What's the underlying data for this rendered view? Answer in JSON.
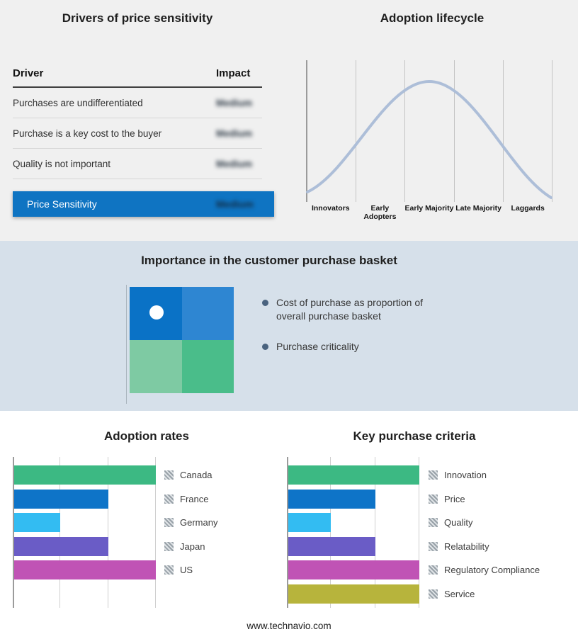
{
  "meta": {
    "footer": "www.technavio.com"
  },
  "drivers_panel": {
    "title": "Drivers of price sensitivity",
    "header": {
      "driver": "Driver",
      "impact": "Impact"
    },
    "rows": [
      {
        "driver": "Purchases are undifferentiated",
        "impact": "Medium"
      },
      {
        "driver": "Purchase is a key cost to the buyer",
        "impact": "Medium"
      },
      {
        "driver": "Quality is not important",
        "impact": "Medium"
      }
    ],
    "summary_row": {
      "label": "Price Sensitivity",
      "impact": "Medium"
    },
    "summary_color": "#0f74c2",
    "impact_values_redacted": true
  },
  "basket_panel": {
    "title": "Importance in the customer purchase basket",
    "bullets": [
      "Cost of purchase as proportion of overall purchase basket",
      "Purchase criticality"
    ],
    "quadrants": {
      "top_left": "#0a72c6",
      "top_right": "#2e86d2",
      "bottom_left": "#7ecaa3",
      "bottom_right": "#4abd8a"
    }
  },
  "chart_data": [
    {
      "type": "line",
      "title": "Adoption lifecycle",
      "shape": "bell-curve",
      "x_labels": [
        "Innovators",
        "Early Adopters",
        "Early Majority",
        "Late Majority",
        "Laggards"
      ],
      "curve_color": "#adbed8",
      "grid": true,
      "legend_position": "none"
    },
    {
      "type": "bar",
      "title": "Adoption rates",
      "orientation": "horizontal",
      "categories": [
        "Canada",
        "France",
        "Germany",
        "Japan",
        "US"
      ],
      "values": [
        3,
        2,
        1,
        2,
        3
      ],
      "colors": [
        "#3cb983",
        "#0e74c8",
        "#33bcf2",
        "#6a5cc6",
        "#c053b5"
      ],
      "xlim": [
        0,
        3
      ],
      "grid": true,
      "legend_position": "right",
      "xlabel": "",
      "ylabel": ""
    },
    {
      "type": "bar",
      "title": "Key purchase criteria",
      "orientation": "horizontal",
      "categories": [
        "Innovation",
        "Price",
        "Quality",
        "Relatability",
        "Regulatory Compliance",
        "Service"
      ],
      "values": [
        3,
        2,
        1,
        2,
        3,
        3
      ],
      "colors": [
        "#3cb983",
        "#0e74c8",
        "#33bcf2",
        "#6a5cc6",
        "#c053b5",
        "#b7b43c"
      ],
      "xlim": [
        0,
        3
      ],
      "grid": true,
      "legend_position": "right",
      "xlabel": "",
      "ylabel": ""
    }
  ]
}
